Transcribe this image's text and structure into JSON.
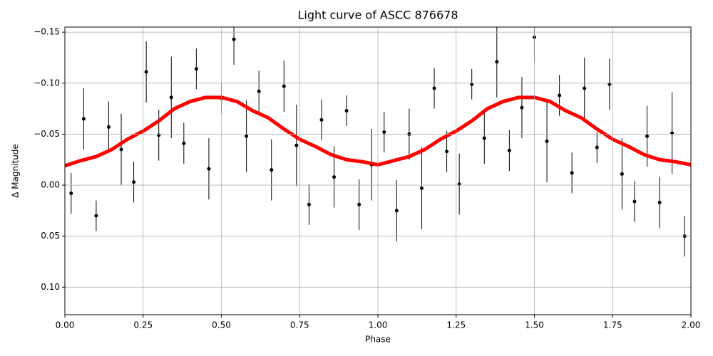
{
  "chart_data": {
    "type": "scatter",
    "title": "Light curve of ASCC 876678",
    "xlabel": "Phase",
    "ylabel": "Δ Magnitude",
    "xlim": [
      0,
      2
    ],
    "ylim": [
      -0.155,
      0.127
    ],
    "y_inverted": true,
    "grid": true,
    "xticks": [
      {
        "value": 0,
        "label": "0.00"
      },
      {
        "value": 0.25,
        "label": "0.25"
      },
      {
        "value": 0.5,
        "label": "0.50"
      },
      {
        "value": 0.75,
        "label": "0.75"
      },
      {
        "value": 1,
        "label": "1.00"
      },
      {
        "value": 1.25,
        "label": "1.25"
      },
      {
        "value": 1.5,
        "label": "1.50"
      },
      {
        "value": 1.75,
        "label": "1.75"
      },
      {
        "value": 2,
        "label": "2.00"
      }
    ],
    "yticks": [
      {
        "value": -0.15,
        "label": "−0.15"
      },
      {
        "value": -0.1,
        "label": "−0.10"
      },
      {
        "value": -0.05,
        "label": "−0.05"
      },
      {
        "value": 0,
        "label": "0.00"
      },
      {
        "value": 0.05,
        "label": "0.05"
      },
      {
        "value": 0.1,
        "label": "0.10"
      }
    ],
    "series": [
      {
        "type": "errorbar",
        "color": "#000000",
        "x": [
          0.02,
          0.06,
          0.1,
          0.14,
          0.18,
          0.22,
          0.26,
          0.3,
          0.34,
          0.38,
          0.42,
          0.46,
          0.5,
          0.54,
          0.58,
          0.62,
          0.66,
          0.7,
          0.74,
          0.78,
          0.82,
          0.86,
          0.9,
          0.94,
          0.98,
          1.02,
          1.06,
          1.1,
          1.14,
          1.18,
          1.22,
          1.26,
          1.3,
          1.34,
          1.38,
          1.42,
          1.46,
          1.5,
          1.54,
          1.58,
          1.62,
          1.66,
          1.7,
          1.74,
          1.78,
          1.82,
          1.86,
          1.9,
          1.94,
          1.98
        ],
        "values": [
          0.008,
          -0.065,
          0.03,
          -0.057,
          -0.035,
          -0.003,
          -0.111,
          -0.049,
          -0.086,
          -0.041,
          -0.114,
          -0.016,
          -0.085,
          -0.143,
          -0.048,
          -0.092,
          -0.015,
          -0.097,
          -0.039,
          0.019,
          -0.064,
          -0.008,
          -0.073,
          0.019,
          -0.02,
          -0.052,
          0.025,
          -0.05,
          0.003,
          -0.095,
          -0.033,
          -0.001,
          -0.099,
          -0.046,
          -0.121,
          -0.034,
          -0.076,
          -0.145,
          -0.043,
          -0.088,
          -0.012,
          -0.095,
          -0.037,
          -0.099,
          -0.011,
          0.016,
          -0.048,
          0.017,
          -0.051,
          0.05
        ],
        "errors": [
          0.02,
          0.03,
          0.015,
          0.025,
          0.035,
          0.02,
          0.03,
          0.025,
          0.04,
          0.02,
          0.02,
          0.03,
          0.015,
          0.025,
          0.035,
          0.02,
          0.03,
          0.025,
          0.04,
          0.02,
          0.02,
          0.03,
          0.015,
          0.025,
          0.035,
          0.02,
          0.03,
          0.025,
          0.04,
          0.02,
          0.02,
          0.03,
          0.015,
          0.025,
          0.035,
          0.02,
          0.03,
          0.025,
          0.04,
          0.02,
          0.02,
          0.03,
          0.015,
          0.025,
          0.035,
          0.02,
          0.03,
          0.025,
          0.04,
          0.02
        ]
      },
      {
        "type": "line",
        "color": "#ff0000",
        "x": [
          0,
          0.05,
          0.1,
          0.15,
          0.2,
          0.25,
          0.3,
          0.35,
          0.4,
          0.45,
          0.5,
          0.55,
          0.6,
          0.65,
          0.7,
          0.75,
          0.8,
          0.85,
          0.9,
          0.95,
          1,
          1.05,
          1.1,
          1.15,
          1.2,
          1.25,
          1.3,
          1.35,
          1.4,
          1.45,
          1.5,
          1.55,
          1.6,
          1.65,
          1.7,
          1.75,
          1.8,
          1.85,
          1.9,
          1.95,
          2
        ],
        "values": [
          -0.019,
          -0.024,
          -0.028,
          -0.035,
          -0.045,
          -0.053,
          -0.063,
          -0.075,
          -0.082,
          -0.086,
          -0.086,
          -0.082,
          -0.073,
          -0.066,
          -0.055,
          -0.045,
          -0.038,
          -0.03,
          -0.025,
          -0.023,
          -0.02,
          -0.024,
          -0.028,
          -0.035,
          -0.045,
          -0.053,
          -0.063,
          -0.075,
          -0.082,
          -0.086,
          -0.086,
          -0.082,
          -0.073,
          -0.066,
          -0.055,
          -0.045,
          -0.038,
          -0.03,
          -0.025,
          -0.023,
          -0.02
        ]
      }
    ]
  }
}
